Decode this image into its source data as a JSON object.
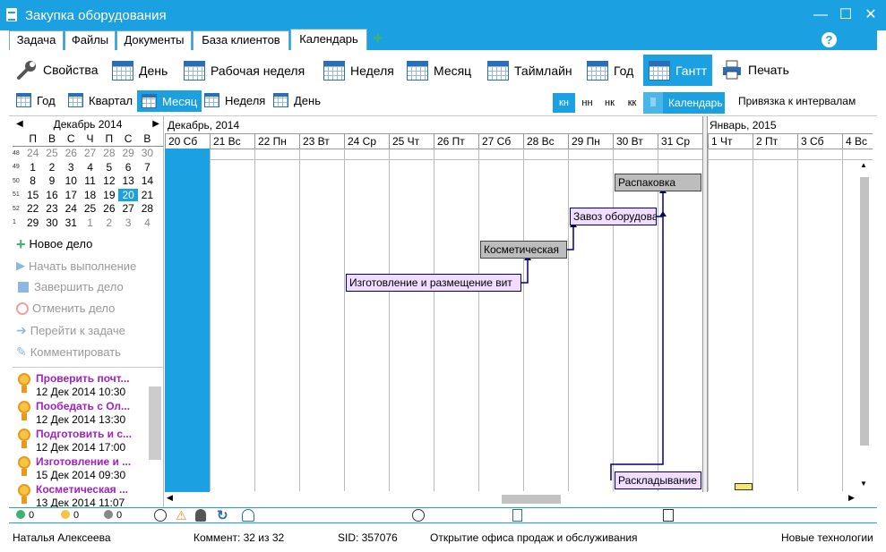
{
  "window": {
    "title": "Закупка оборудования",
    "minimize": "—",
    "maximize": "☐",
    "close": "✕"
  },
  "tabs": [
    {
      "label": "Задача"
    },
    {
      "label": "Файлы"
    },
    {
      "label": "Документы"
    },
    {
      "label": "База клиентов"
    },
    {
      "label": "Календарь"
    }
  ],
  "tab_add": "+",
  "help": "?",
  "toolbar": {
    "props": "Свойства",
    "day": "День",
    "workweek": "Рабочая неделя",
    "week": "Неделя",
    "month": "Месяц",
    "timeline": "Таймлайн",
    "year": "Год",
    "gantt": "Гантт",
    "print": "Печать"
  },
  "toolbar2": {
    "year": "Год",
    "quarter": "Квартал",
    "month": "Месяц",
    "week": "Неделя",
    "day": "День",
    "kn": "кн",
    "nn": "нн",
    "nk": "нк",
    "kk": "кк",
    "calendar": "Календарь",
    "bind": "Привязка к интервалам"
  },
  "minical": {
    "month": "Декабрь 2014",
    "prev": "◀",
    "next": "▶",
    "weekdays": [
      "П",
      "В",
      "С",
      "Ч",
      "П",
      "С",
      "В"
    ],
    "weeks": [
      {
        "no": "48",
        "days": [
          "24",
          "25",
          "26",
          "27",
          "28",
          "29",
          "30"
        ]
      },
      {
        "no": "49",
        "days": [
          "1",
          "2",
          "3",
          "4",
          "5",
          "6",
          "7"
        ]
      },
      {
        "no": "50",
        "days": [
          "8",
          "9",
          "10",
          "11",
          "12",
          "13",
          "14"
        ]
      },
      {
        "no": "51",
        "days": [
          "15",
          "16",
          "17",
          "18",
          "19",
          "20",
          "21"
        ]
      },
      {
        "no": "52",
        "days": [
          "22",
          "23",
          "24",
          "25",
          "26",
          "27",
          "28"
        ]
      },
      {
        "no": "1",
        "days": [
          "29",
          "30",
          "31",
          "1",
          "2",
          "3",
          "4"
        ]
      }
    ]
  },
  "actions": {
    "new": "Новое дело",
    "start": "Начать выполнение",
    "finish": "Завершить дело",
    "cancel": "Отменить дело",
    "goto": "Перейти к задаче",
    "comment": "Комментировать"
  },
  "tasks": [
    {
      "name": "Проверить почт...",
      "time": "12 Дек 2014 10:30"
    },
    {
      "name": "Пообедать с Ол...",
      "time": "12 Дек 2014 13:30"
    },
    {
      "name": "Подготовить и с...",
      "time": "12 Дек 2014 17:00"
    },
    {
      "name": "Изготовление и ...",
      "time": "15 Дек 2014 09:30"
    },
    {
      "name": "Косметическая ...",
      "time": "13 Дек 2014 11:07"
    }
  ],
  "gantt": {
    "month1": "Декабрь, 2014",
    "month2": "Январь, 2015",
    "days": [
      "20 Сб",
      "21 Вс",
      "22 Пн",
      "23 Вт",
      "24 Ср",
      "25 Чт",
      "26 Пт",
      "27 Сб",
      "28 Вс",
      "29 Пн",
      "30 Вт",
      "31 Ср",
      "1 Чт",
      "2 Пт",
      "3 Сб",
      "4 Вс"
    ],
    "bars": [
      {
        "label": "Распаковка"
      },
      {
        "label": "Завоз оборудования"
      },
      {
        "label": "Косметическая"
      },
      {
        "label": "Изготовление и размещение вит"
      },
      {
        "label": "Раскладывание"
      }
    ]
  },
  "status_counts": [
    "0",
    "0",
    "0"
  ],
  "footer": {
    "user": "Наталья Алексеева",
    "comments": "Коммент: 32 из 32",
    "sid": "SID: 357076",
    "project": "Открытие офиса продаж и обслуживания",
    "org": "Новые технологии"
  }
}
